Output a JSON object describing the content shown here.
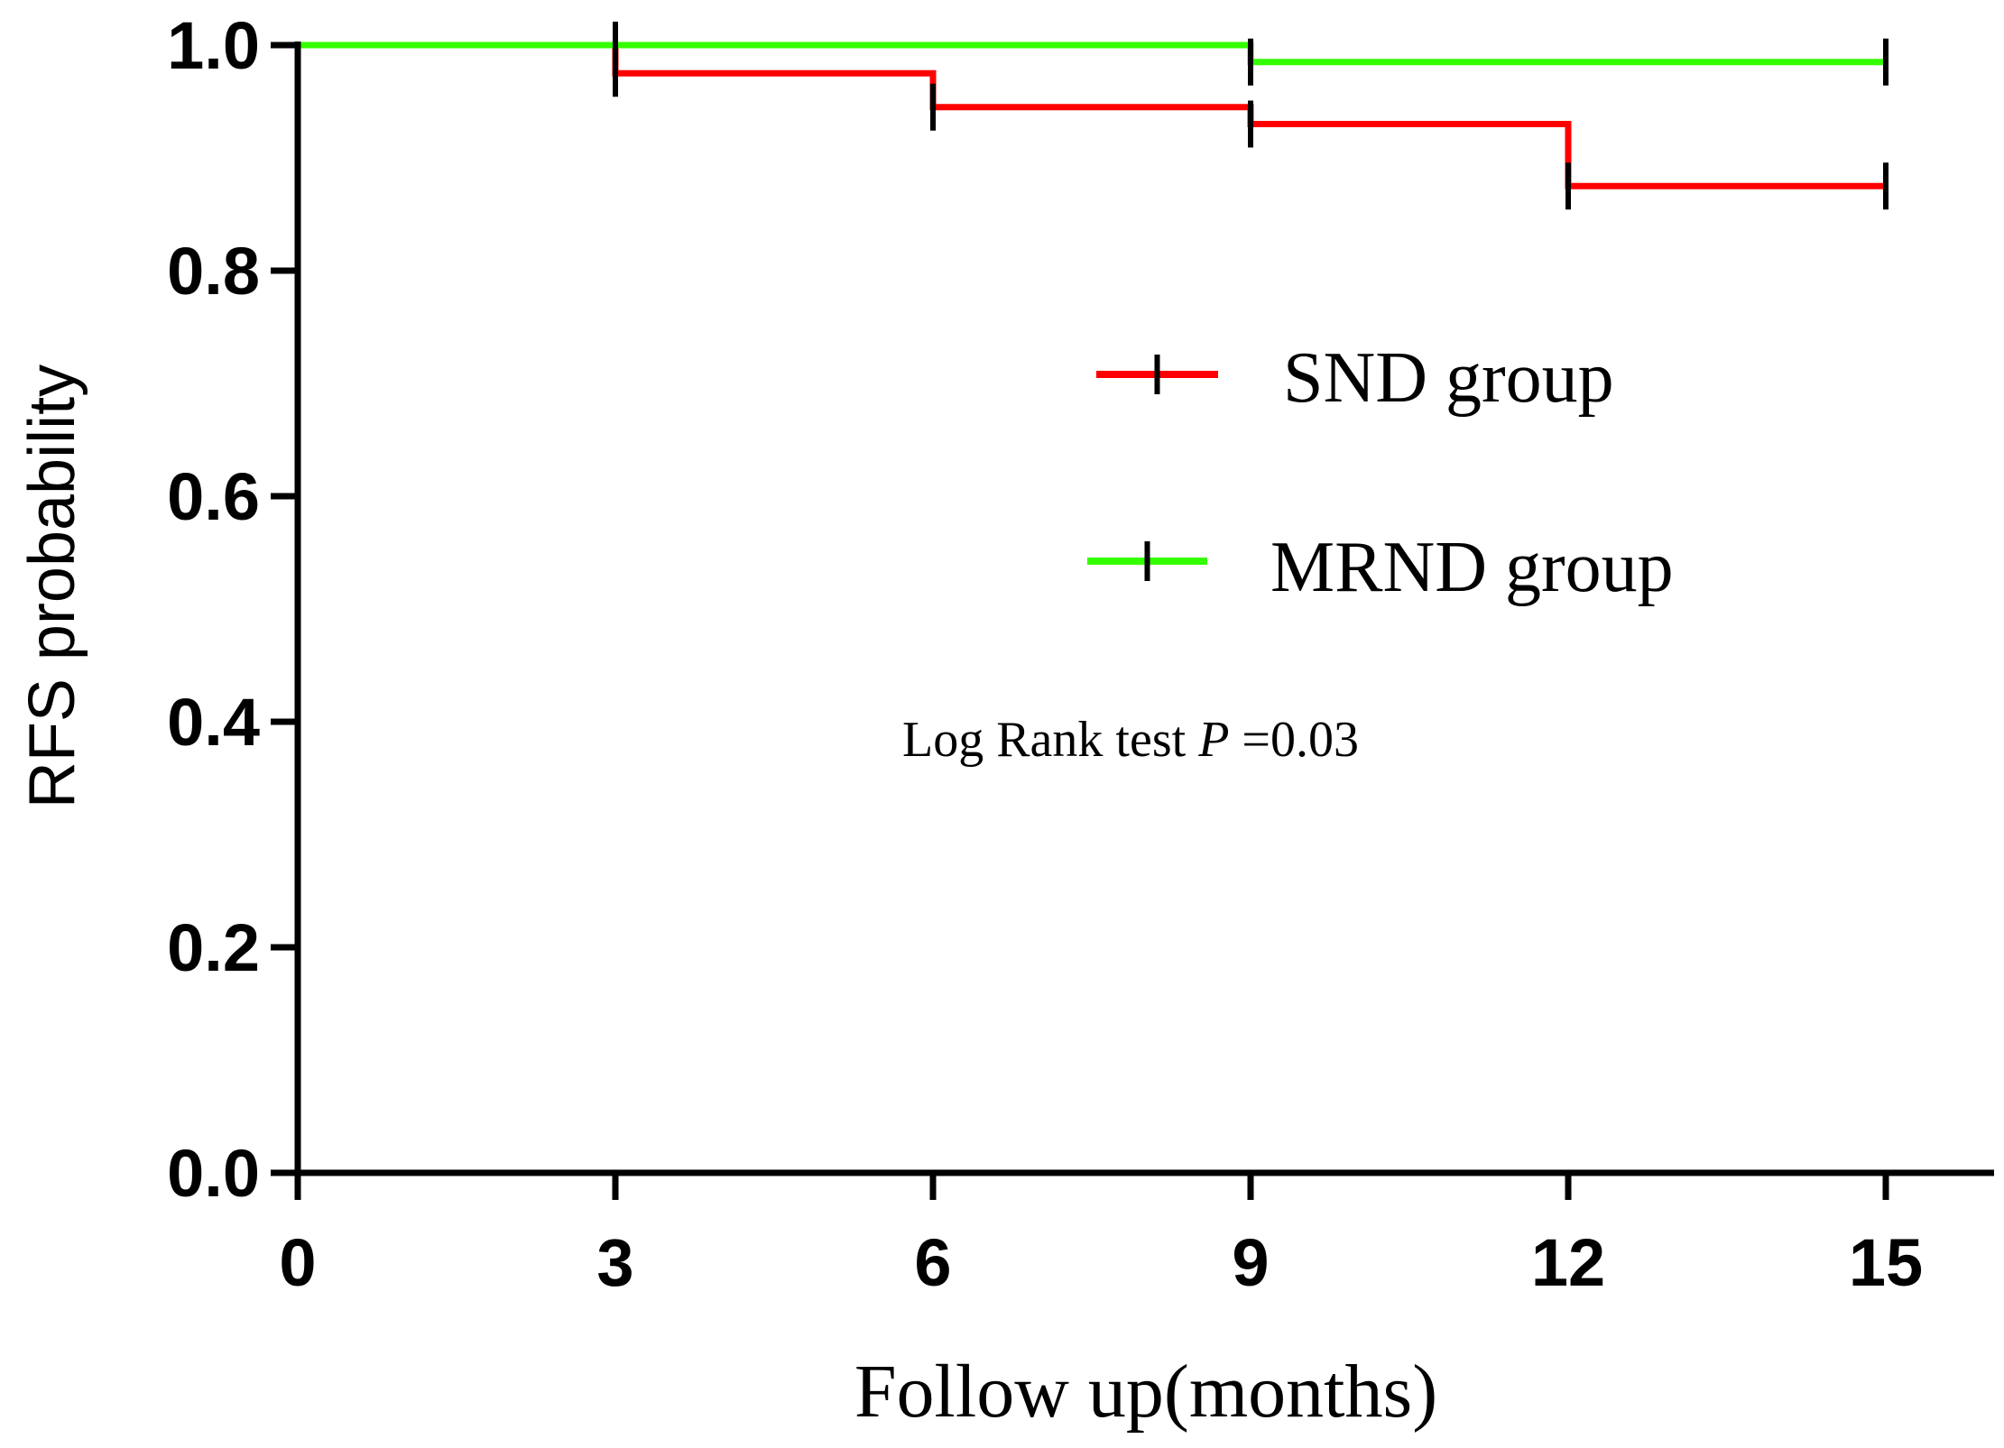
{
  "chart_data": {
    "type": "line",
    "subtype": "kaplan-meier step",
    "title": "",
    "xlabel": "Follow up(months)",
    "ylabel": "RFS probability",
    "xlim": [
      0,
      15
    ],
    "ylim": [
      0,
      1.0
    ],
    "x_ticks": [
      "0",
      "3",
      "6",
      "9",
      "12",
      "15"
    ],
    "y_ticks": [
      "0.0",
      "0.2",
      "0.4",
      "0.6",
      "0.8",
      "1.0"
    ],
    "grid": false,
    "legend_position": "center-right",
    "series": [
      {
        "name": "SND group",
        "color": "#ff0000",
        "steps": [
          [
            0,
            1.0
          ],
          [
            3,
            0.975
          ],
          [
            6,
            0.945
          ],
          [
            9,
            0.93
          ],
          [
            12,
            0.875
          ],
          [
            15,
            0.875
          ]
        ],
        "censored": [
          [
            3,
            0.975
          ],
          [
            6,
            0.945
          ],
          [
            9,
            0.93
          ],
          [
            12,
            0.875
          ],
          [
            15,
            0.875
          ]
        ]
      },
      {
        "name": "MRND group",
        "color": "#33ff00",
        "steps": [
          [
            0,
            1.0
          ],
          [
            9,
            0.985
          ],
          [
            15,
            0.985
          ]
        ],
        "censored": [
          [
            3,
            1.0
          ],
          [
            9,
            0.985
          ],
          [
            15,
            0.985
          ]
        ]
      }
    ],
    "annotation": {
      "prefix": "Log Rank  test ",
      "italic": "P",
      "suffix": " =0.03"
    }
  }
}
